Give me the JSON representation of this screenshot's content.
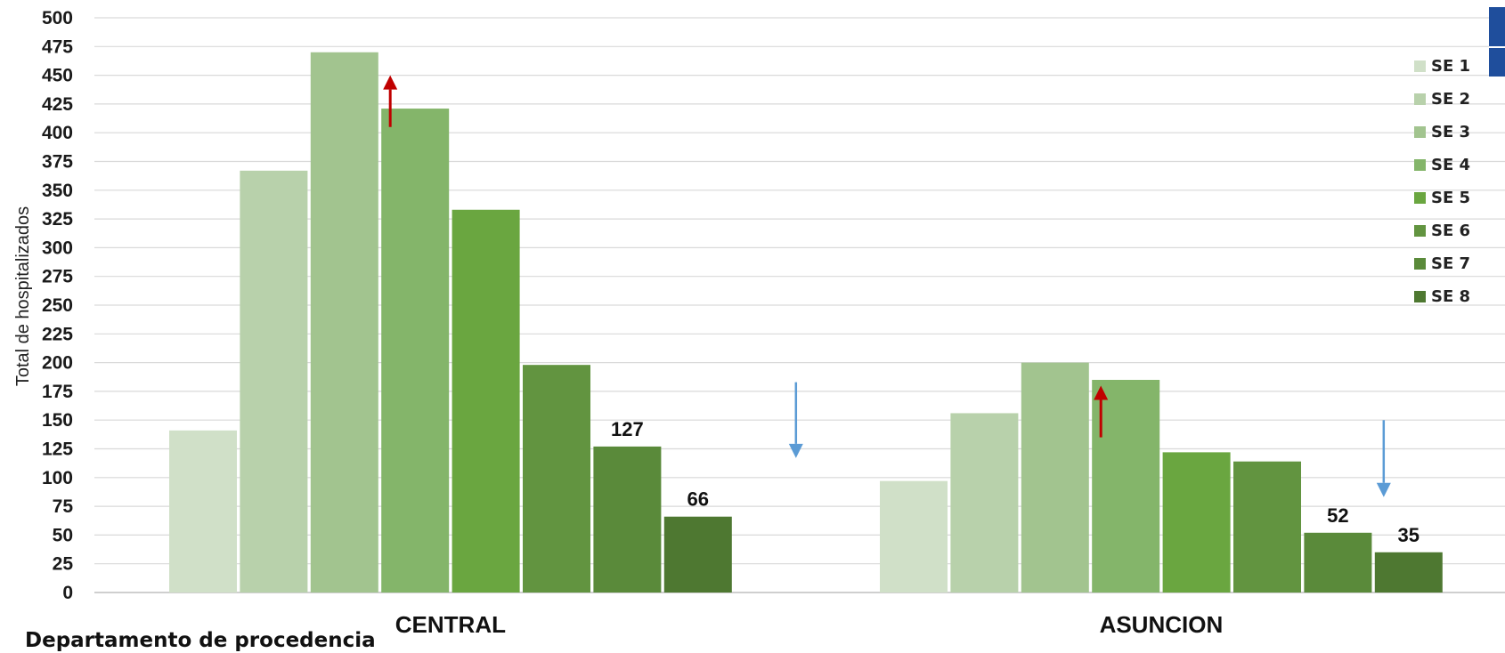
{
  "chart_data": {
    "type": "bar",
    "title": "",
    "xlabel": "Departamento de procedencia",
    "ylabel": "Total de hospitalizados",
    "ylim": [
      0,
      500
    ],
    "ytick_step": 25,
    "grid": true,
    "legend_position": "right",
    "categories": [
      "CENTRAL",
      "ASUNCION"
    ],
    "series": [
      {
        "name": "SE 1",
        "values": [
          141,
          97
        ],
        "color": "#d0e0c8"
      },
      {
        "name": "SE 2",
        "values": [
          367,
          156
        ],
        "color": "#b8d1ab"
      },
      {
        "name": "SE 3",
        "values": [
          470,
          200
        ],
        "color": "#a2c48f"
      },
      {
        "name": "SE 4",
        "values": [
          421,
          185
        ],
        "color": "#84b56a"
      },
      {
        "name": "SE 5",
        "values": [
          333,
          122
        ],
        "color": "#6aa640"
      },
      {
        "name": "SE 6",
        "values": [
          198,
          114
        ],
        "color": "#629440"
      },
      {
        "name": "SE 7",
        "values": [
          127,
          52
        ],
        "color": "#5a8a3a"
      },
      {
        "name": "SE 8",
        "values": [
          66,
          35
        ],
        "color": "#4e7831"
      }
    ],
    "data_labels": [
      {
        "category": "CENTRAL",
        "series": "SE 7",
        "text": "127"
      },
      {
        "category": "CENTRAL",
        "series": "SE 8",
        "text": "66"
      },
      {
        "category": "ASUNCION",
        "series": "SE 7",
        "text": "52"
      },
      {
        "category": "ASUNCION",
        "series": "SE 8",
        "text": "35"
      }
    ],
    "annotations": [
      {
        "type": "arrow-up",
        "color": "#c00000",
        "category": "CENTRAL",
        "series": "SE 4",
        "from": 405,
        "to": 450
      },
      {
        "type": "arrow-down",
        "color": "#5b9bd5",
        "category": "CENTRAL",
        "after_series": "SE 8",
        "from": 183,
        "to": 117
      },
      {
        "type": "arrow-up",
        "color": "#c00000",
        "category": "ASUNCION",
        "series": "SE 4",
        "from": 135,
        "to": 180
      },
      {
        "type": "arrow-down",
        "color": "#5b9bd5",
        "category": "ASUNCION",
        "series": "SE 8",
        "from": 150,
        "to": 83
      }
    ]
  },
  "colors": {
    "grid": "#d9d9d9",
    "axis": "#bfbfbf",
    "corner_accent": "#1f4e9c"
  }
}
